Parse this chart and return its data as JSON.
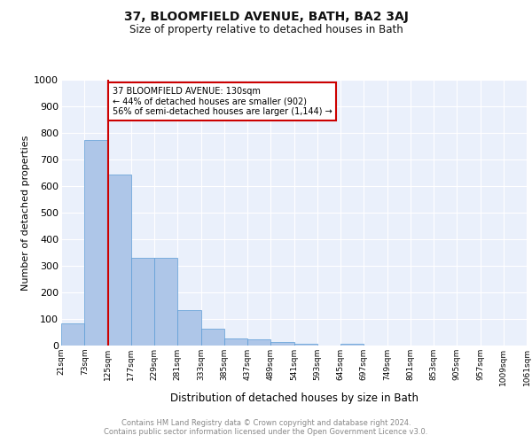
{
  "title1": "37, BLOOMFIELD AVENUE, BATH, BA2 3AJ",
  "title2": "Size of property relative to detached houses in Bath",
  "xlabel": "Distribution of detached houses by size in Bath",
  "ylabel": "Number of detached properties",
  "bins": [
    "21sqm",
    "73sqm",
    "125sqm",
    "177sqm",
    "229sqm",
    "281sqm",
    "333sqm",
    "385sqm",
    "437sqm",
    "489sqm",
    "541sqm",
    "593sqm",
    "645sqm",
    "697sqm",
    "749sqm",
    "801sqm",
    "853sqm",
    "905sqm",
    "957sqm",
    "1009sqm",
    "1061sqm"
  ],
  "values": [
    85,
    775,
    645,
    330,
    330,
    135,
    62,
    27,
    22,
    14,
    7,
    0,
    8,
    0,
    0,
    0,
    0,
    0,
    0,
    0
  ],
  "bar_color": "#aec6e8",
  "bar_edge_color": "#5a9bd5",
  "background_color": "#eaf0fb",
  "grid_color": "#ffffff",
  "ylim": [
    0,
    1000
  ],
  "yticks": [
    0,
    100,
    200,
    300,
    400,
    500,
    600,
    700,
    800,
    900,
    1000
  ],
  "property_bin_index": 2,
  "red_line_color": "#cc0000",
  "annotation_line1": "37 BLOOMFIELD AVENUE: 130sqm",
  "annotation_line2": "← 44% of detached houses are smaller (902)",
  "annotation_line3": "56% of semi-detached houses are larger (1,144) →",
  "footer1": "Contains HM Land Registry data © Crown copyright and database right 2024.",
  "footer2": "Contains public sector information licensed under the Open Government Licence v3.0."
}
